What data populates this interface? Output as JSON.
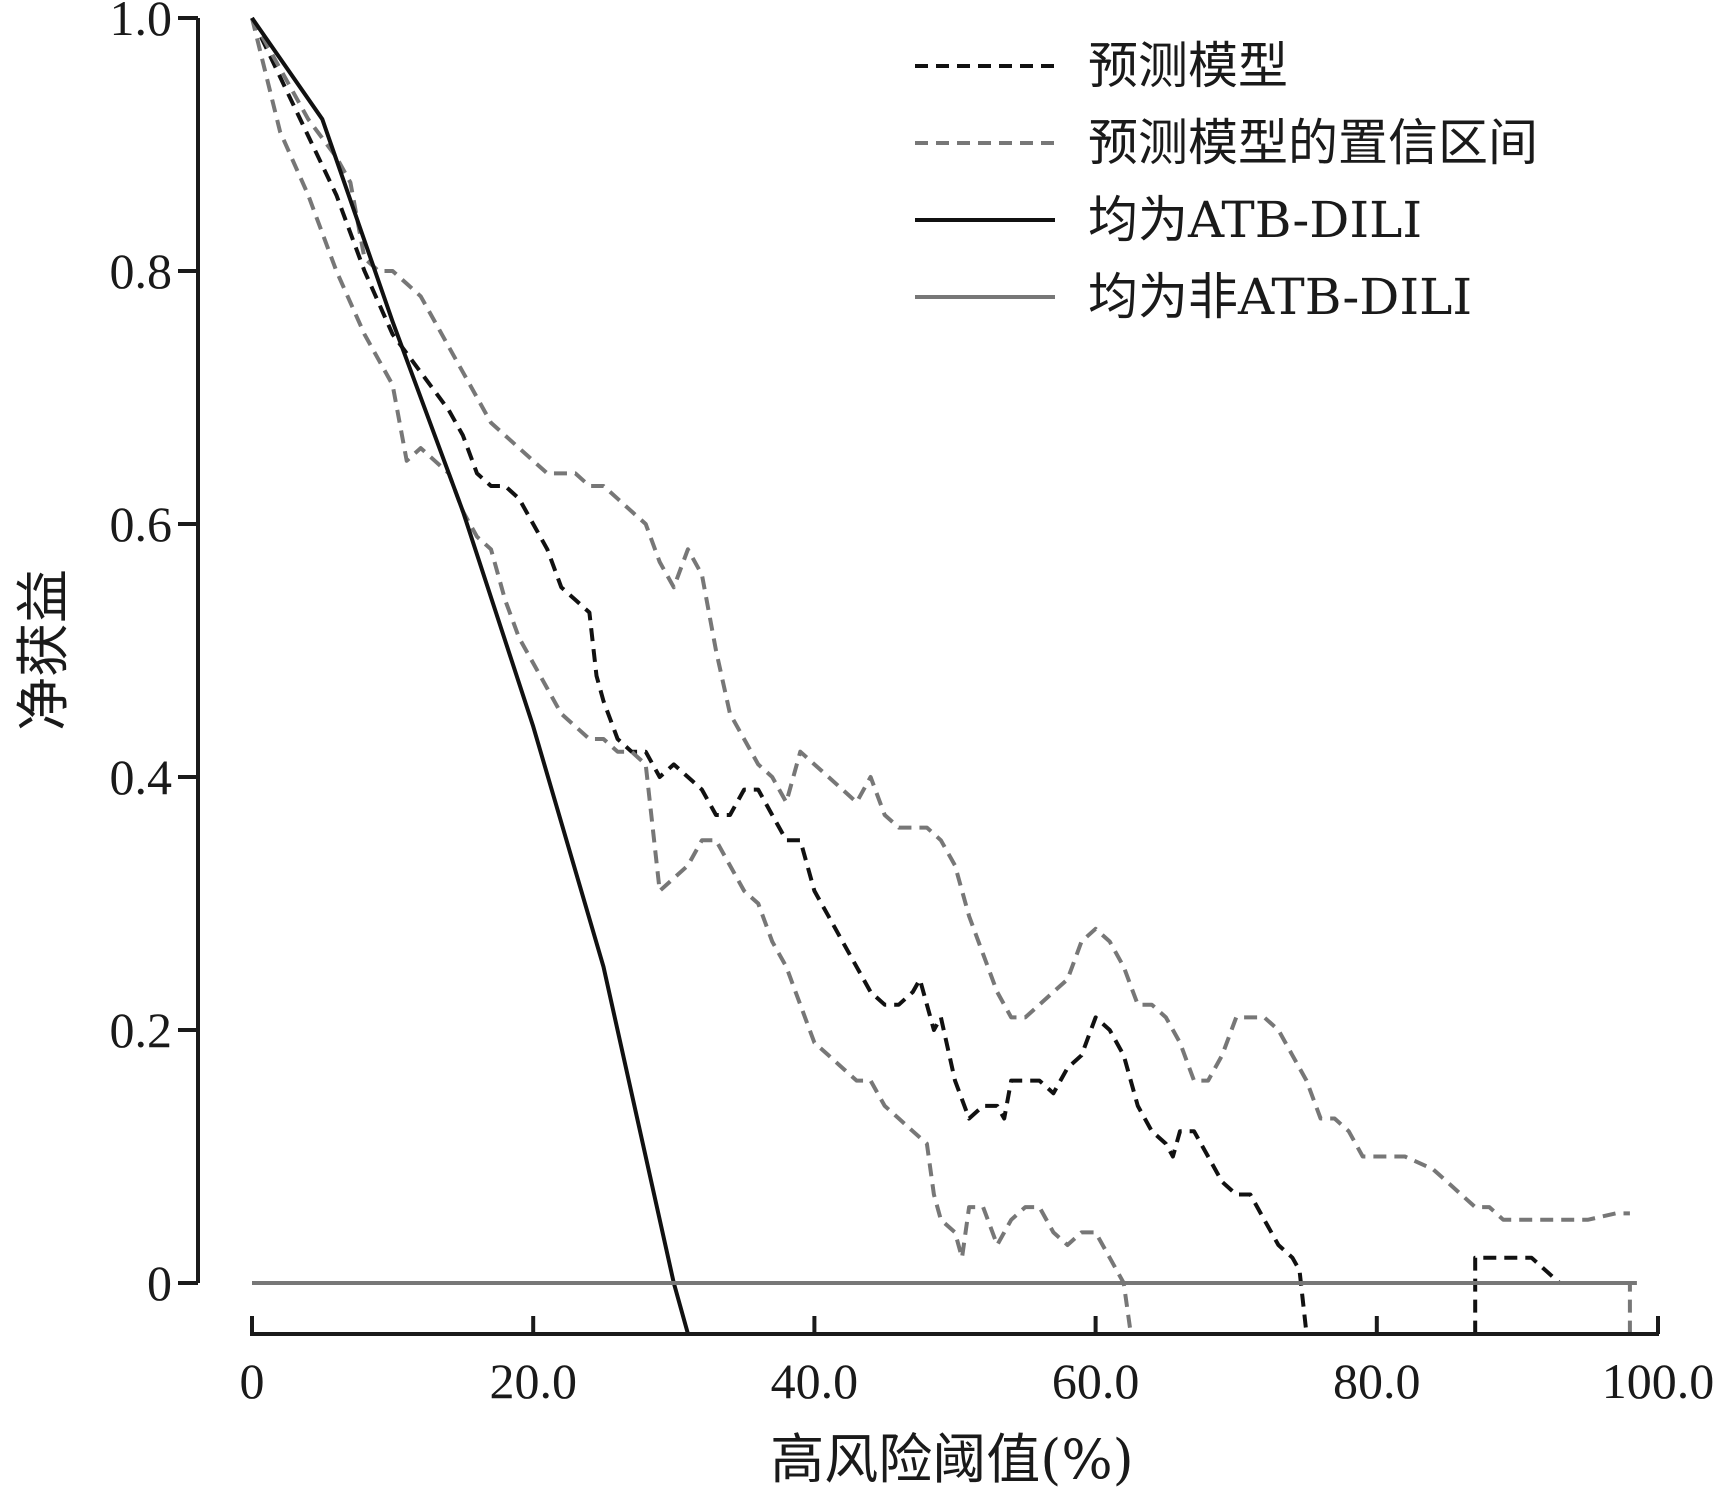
{
  "chart_data": {
    "type": "line",
    "xlabel": "高风险阈值(%)",
    "ylabel": "净获益",
    "xlim": [
      0,
      100
    ],
    "ylim": [
      -0.04,
      1.0
    ],
    "x_ticks": [
      {
        "value": 0,
        "label": "0"
      },
      {
        "value": 20,
        "label": "20.0"
      },
      {
        "value": 40,
        "label": "40.0"
      },
      {
        "value": 60,
        "label": "60.0"
      },
      {
        "value": 80,
        "label": "80.0"
      },
      {
        "value": 100,
        "label": "100.0"
      }
    ],
    "y_ticks": [
      {
        "value": 0,
        "label": "0"
      },
      {
        "value": 0.2,
        "label": "0.2"
      },
      {
        "value": 0.4,
        "label": "0.4"
      },
      {
        "value": 0.6,
        "label": "0.6"
      },
      {
        "value": 0.8,
        "label": "0.8"
      },
      {
        "value": 1.0,
        "label": "1.0"
      }
    ],
    "legend_position": "top-right",
    "series": [
      {
        "name": "预测模型",
        "style": "dashed",
        "color": "#111111",
        "points": [
          [
            0,
            1.0
          ],
          [
            3,
            0.93
          ],
          [
            6,
            0.86
          ],
          [
            8,
            0.8
          ],
          [
            10,
            0.75
          ],
          [
            12,
            0.72
          ],
          [
            14,
            0.69
          ],
          [
            15,
            0.67
          ],
          [
            16,
            0.64
          ],
          [
            17,
            0.63
          ],
          [
            18,
            0.63
          ],
          [
            19,
            0.62
          ],
          [
            20,
            0.6
          ],
          [
            21,
            0.58
          ],
          [
            22,
            0.55
          ],
          [
            23,
            0.54
          ],
          [
            24,
            0.53
          ],
          [
            24.5,
            0.48
          ],
          [
            25,
            0.46
          ],
          [
            26,
            0.43
          ],
          [
            27,
            0.42
          ],
          [
            28,
            0.42
          ],
          [
            29,
            0.4
          ],
          [
            30,
            0.41
          ],
          [
            31,
            0.4
          ],
          [
            32,
            0.39
          ],
          [
            33,
            0.37
          ],
          [
            34,
            0.37
          ],
          [
            35,
            0.39
          ],
          [
            36,
            0.39
          ],
          [
            37,
            0.37
          ],
          [
            38,
            0.35
          ],
          [
            39,
            0.35
          ],
          [
            40,
            0.31
          ],
          [
            41,
            0.29
          ],
          [
            42,
            0.27
          ],
          [
            43,
            0.25
          ],
          [
            44,
            0.23
          ],
          [
            45,
            0.22
          ],
          [
            46,
            0.22
          ],
          [
            47,
            0.23
          ],
          [
            47.5,
            0.24
          ],
          [
            48,
            0.22
          ],
          [
            48.5,
            0.2
          ],
          [
            49,
            0.21
          ],
          [
            50,
            0.16
          ],
          [
            51,
            0.13
          ],
          [
            52,
            0.14
          ],
          [
            53,
            0.14
          ],
          [
            53.5,
            0.13
          ],
          [
            54,
            0.16
          ],
          [
            55,
            0.16
          ],
          [
            56,
            0.16
          ],
          [
            57,
            0.15
          ],
          [
            58,
            0.17
          ],
          [
            59,
            0.18
          ],
          [
            60,
            0.21
          ],
          [
            61,
            0.2
          ],
          [
            62,
            0.18
          ],
          [
            63,
            0.14
          ],
          [
            64,
            0.12
          ],
          [
            65,
            0.11
          ],
          [
            65.5,
            0.1
          ],
          [
            66,
            0.12
          ],
          [
            67,
            0.12
          ],
          [
            68,
            0.1
          ],
          [
            69,
            0.08
          ],
          [
            70,
            0.07
          ],
          [
            71,
            0.07
          ],
          [
            72,
            0.05
          ],
          [
            73,
            0.03
          ],
          [
            74,
            0.02
          ],
          [
            74.5,
            0.01
          ],
          [
            75,
            -0.04
          ]
        ]
      },
      {
        "name": "预测模型",
        "style": "dashed",
        "color": "#111111",
        "points": [
          [
            87,
            -0.04
          ],
          [
            87,
            0.02
          ],
          [
            88,
            0.02
          ],
          [
            90,
            0.02
          ],
          [
            91,
            0.02
          ],
          [
            92,
            0.01
          ],
          [
            93,
            0.0
          ],
          [
            95,
            0.0
          ],
          [
            98,
            0.0
          ]
        ]
      },
      {
        "name": "预测模型的置信区间",
        "style": "dashed",
        "color": "#777777",
        "points": [
          [
            0,
            1.0
          ],
          [
            2,
            0.96
          ],
          [
            4,
            0.92
          ],
          [
            6,
            0.89
          ],
          [
            7,
            0.87
          ],
          [
            8,
            0.81
          ],
          [
            9,
            0.8
          ],
          [
            10,
            0.8
          ],
          [
            11,
            0.79
          ],
          [
            12,
            0.78
          ],
          [
            13,
            0.76
          ],
          [
            14,
            0.74
          ],
          [
            15,
            0.72
          ],
          [
            16,
            0.7
          ],
          [
            17,
            0.68
          ],
          [
            18,
            0.67
          ],
          [
            19,
            0.66
          ],
          [
            20,
            0.65
          ],
          [
            21,
            0.64
          ],
          [
            22,
            0.64
          ],
          [
            23,
            0.64
          ],
          [
            24,
            0.63
          ],
          [
            25,
            0.63
          ],
          [
            26,
            0.62
          ],
          [
            27,
            0.61
          ],
          [
            28,
            0.6
          ],
          [
            29,
            0.57
          ],
          [
            30,
            0.55
          ],
          [
            31,
            0.58
          ],
          [
            32,
            0.56
          ],
          [
            33,
            0.5
          ],
          [
            34,
            0.45
          ],
          [
            35,
            0.43
          ],
          [
            36,
            0.41
          ],
          [
            37,
            0.4
          ],
          [
            38,
            0.38
          ],
          [
            39,
            0.42
          ],
          [
            40,
            0.41
          ],
          [
            41,
            0.4
          ],
          [
            42,
            0.39
          ],
          [
            43,
            0.38
          ],
          [
            44,
            0.4
          ],
          [
            45,
            0.37
          ],
          [
            46,
            0.36
          ],
          [
            47,
            0.36
          ],
          [
            48,
            0.36
          ],
          [
            49,
            0.35
          ],
          [
            50,
            0.33
          ],
          [
            51,
            0.29
          ],
          [
            52,
            0.26
          ],
          [
            53,
            0.23
          ],
          [
            54,
            0.21
          ],
          [
            55,
            0.21
          ],
          [
            56,
            0.22
          ],
          [
            57,
            0.23
          ],
          [
            58,
            0.24
          ],
          [
            59,
            0.27
          ],
          [
            60,
            0.28
          ],
          [
            61,
            0.27
          ],
          [
            62,
            0.25
          ],
          [
            63,
            0.22
          ],
          [
            64,
            0.22
          ],
          [
            65,
            0.21
          ],
          [
            66,
            0.19
          ],
          [
            67,
            0.16
          ],
          [
            68,
            0.16
          ],
          [
            69,
            0.18
          ],
          [
            70,
            0.21
          ],
          [
            71,
            0.21
          ],
          [
            72,
            0.21
          ],
          [
            73,
            0.2
          ],
          [
            74,
            0.18
          ],
          [
            75,
            0.16
          ],
          [
            76,
            0.13
          ],
          [
            77,
            0.13
          ],
          [
            78,
            0.12
          ],
          [
            79,
            0.1
          ],
          [
            80,
            0.1
          ],
          [
            82,
            0.1
          ],
          [
            84,
            0.09
          ],
          [
            85,
            0.08
          ],
          [
            86,
            0.07
          ],
          [
            87,
            0.06
          ],
          [
            88,
            0.06
          ],
          [
            89,
            0.05
          ],
          [
            90,
            0.05
          ],
          [
            92,
            0.05
          ],
          [
            93,
            0.05
          ],
          [
            95,
            0.05
          ],
          [
            97,
            0.055
          ],
          [
            98,
            0.055
          ]
        ]
      },
      {
        "name": "预测模型的置信区间",
        "style": "dashed",
        "color": "#777777",
        "points": [
          [
            0,
            1.0
          ],
          [
            2,
            0.91
          ],
          [
            4,
            0.86
          ],
          [
            6,
            0.8
          ],
          [
            8,
            0.75
          ],
          [
            10,
            0.71
          ],
          [
            11,
            0.65
          ],
          [
            12,
            0.66
          ],
          [
            13,
            0.65
          ],
          [
            14,
            0.64
          ],
          [
            15,
            0.61
          ],
          [
            16,
            0.59
          ],
          [
            17,
            0.58
          ],
          [
            18,
            0.54
          ],
          [
            19,
            0.51
          ],
          [
            20,
            0.49
          ],
          [
            21,
            0.47
          ],
          [
            22,
            0.45
          ],
          [
            23,
            0.44
          ],
          [
            24,
            0.43
          ],
          [
            25,
            0.43
          ],
          [
            26,
            0.42
          ],
          [
            27,
            0.42
          ],
          [
            28,
            0.41
          ],
          [
            29,
            0.31
          ],
          [
            30,
            0.32
          ],
          [
            31,
            0.33
          ],
          [
            32,
            0.35
          ],
          [
            33,
            0.35
          ],
          [
            34,
            0.33
          ],
          [
            35,
            0.31
          ],
          [
            36,
            0.3
          ],
          [
            37,
            0.27
          ],
          [
            38,
            0.25
          ],
          [
            39,
            0.22
          ],
          [
            40,
            0.19
          ],
          [
            41,
            0.18
          ],
          [
            42,
            0.17
          ],
          [
            43,
            0.16
          ],
          [
            44,
            0.16
          ],
          [
            45,
            0.14
          ],
          [
            46,
            0.13
          ],
          [
            47,
            0.12
          ],
          [
            48,
            0.11
          ],
          [
            48.5,
            0.07
          ],
          [
            49,
            0.05
          ],
          [
            50,
            0.04
          ],
          [
            50.5,
            0.02
          ],
          [
            51,
            0.06
          ],
          [
            52,
            0.06
          ],
          [
            53,
            0.03
          ],
          [
            54,
            0.05
          ],
          [
            55,
            0.06
          ],
          [
            56,
            0.06
          ],
          [
            57,
            0.04
          ],
          [
            58,
            0.03
          ],
          [
            59,
            0.04
          ],
          [
            60,
            0.04
          ],
          [
            61,
            0.02
          ],
          [
            62,
            0.0
          ],
          [
            62.5,
            -0.04
          ]
        ]
      },
      {
        "name": "预测模型的置信区间",
        "style": "dashed",
        "color": "#777777",
        "points": [
          [
            98,
            -0.04
          ],
          [
            98,
            0.0
          ],
          [
            98.5,
            0.0
          ]
        ]
      },
      {
        "name": "均为ATB-DILI",
        "style": "solid",
        "color": "#111111",
        "points": [
          [
            0,
            1.0
          ],
          [
            5,
            0.92
          ],
          [
            10,
            0.76
          ],
          [
            15,
            0.61
          ],
          [
            20,
            0.44
          ],
          [
            25,
            0.25
          ],
          [
            30,
            0.0
          ],
          [
            31,
            -0.04
          ]
        ]
      },
      {
        "name": "均为非ATB-DILI",
        "style": "solid",
        "color": "#777777",
        "points": [
          [
            0,
            0
          ],
          [
            98.5,
            0
          ]
        ]
      }
    ],
    "legend": [
      {
        "label": "预测模型",
        "style": "dashed",
        "color": "#111111"
      },
      {
        "label": "预测模型的置信区间",
        "style": "dashed",
        "color": "#777777"
      },
      {
        "label": "均为ATB-DILI",
        "style": "solid",
        "color": "#111111"
      },
      {
        "label": "均为非ATB-DILI",
        "style": "solid",
        "color": "#777777"
      }
    ]
  }
}
